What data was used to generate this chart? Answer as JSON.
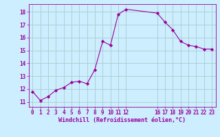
{
  "x": [
    0,
    1,
    2,
    3,
    4,
    5,
    6,
    7,
    8,
    9,
    10,
    11,
    12,
    16,
    17,
    18,
    19,
    20,
    21,
    22,
    23
  ],
  "y": [
    11.8,
    11.1,
    11.4,
    11.9,
    12.1,
    12.5,
    12.6,
    12.4,
    13.5,
    15.7,
    15.4,
    17.8,
    18.2,
    17.9,
    17.2,
    16.6,
    15.7,
    15.4,
    15.3,
    15.1,
    15.1
  ],
  "xticks": [
    0,
    1,
    2,
    3,
    4,
    5,
    6,
    7,
    8,
    9,
    10,
    11,
    12,
    16,
    17,
    18,
    19,
    20,
    21,
    22,
    23
  ],
  "yticks": [
    11,
    12,
    13,
    14,
    15,
    16,
    17,
    18
  ],
  "ylim": [
    10.6,
    18.6
  ],
  "xlim": [
    -0.5,
    23.5
  ],
  "xlabel": "Windchill (Refroidissement éolien,°C)",
  "line_color": "#990099",
  "marker": "D",
  "marker_size": 2.2,
  "bg_color": "#cceeff",
  "grid_color": "#aacccc",
  "tick_color": "#990099",
  "label_color": "#990099",
  "font_family": "monospace",
  "tick_fontsize": 5.5,
  "xlabel_fontsize": 6.0
}
